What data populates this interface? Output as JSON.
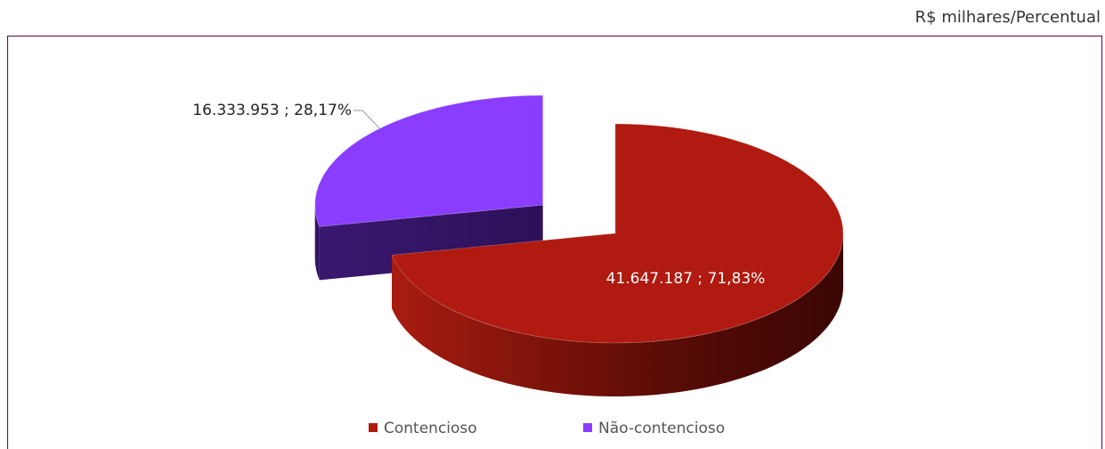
{
  "chart_data": {
    "type": "pie",
    "subtitle": "R$ milhares/Percentual",
    "categories": [
      "Contencioso",
      "Não-contencioso"
    ],
    "values": [
      41647187,
      16333953
    ],
    "value_labels": [
      "41.647.187 ; 71,83%",
      "16.333.953 ; 28,17%"
    ],
    "colors": [
      "#b01a10",
      "#8a3dff"
    ],
    "legend": "bottom"
  }
}
